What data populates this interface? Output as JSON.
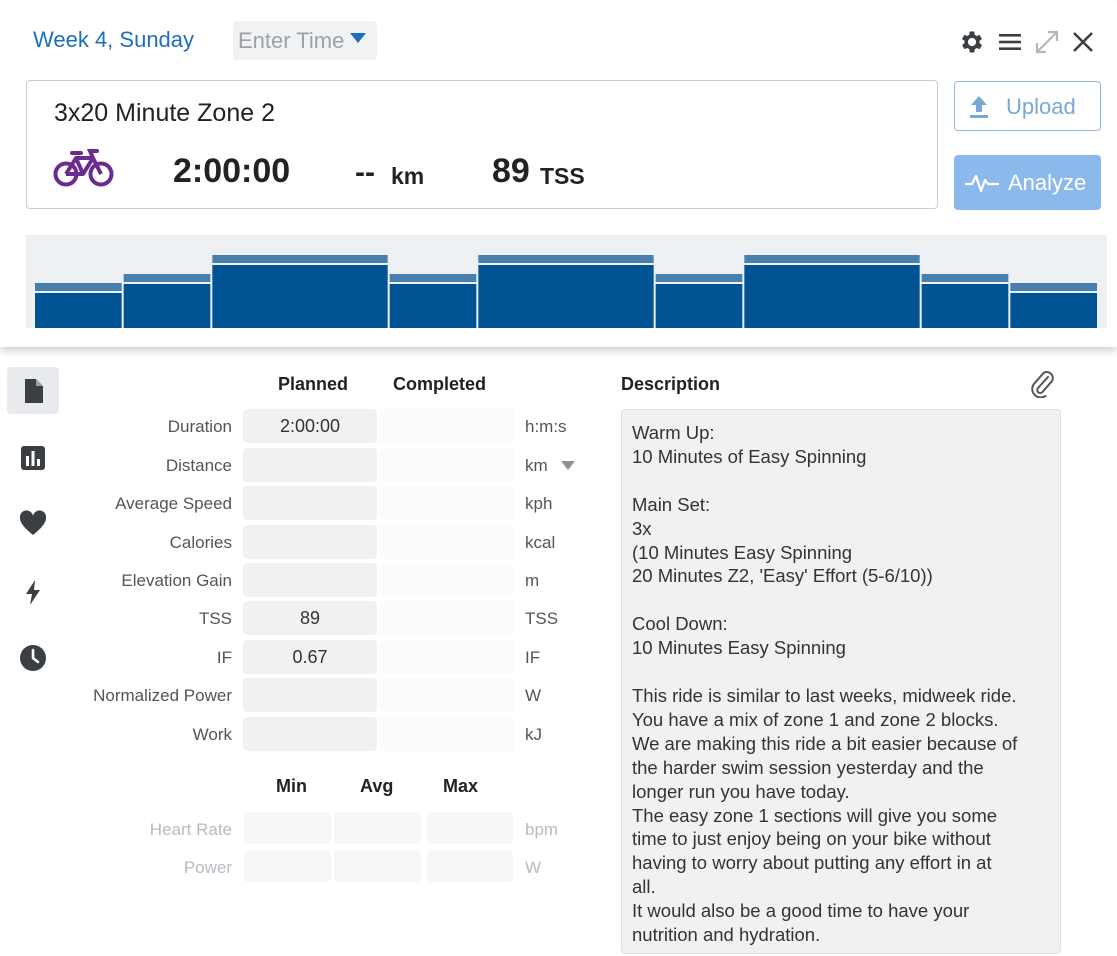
{
  "header": {
    "week_title": "Week 4, Sunday",
    "time_placeholder": "Enter Time",
    "icons": [
      "gear-icon",
      "menu-icon",
      "expand-icon",
      "close-icon"
    ]
  },
  "summary": {
    "title": "3x20 Minute Zone 2",
    "sport_icon": "bike-icon",
    "duration": "2:00:00",
    "distance": "--",
    "distance_unit": "km",
    "tss": "89",
    "tss_unit": "TSS"
  },
  "actions": {
    "upload_label": "Upload",
    "analyze_label": "Analyze"
  },
  "workout_structure": {
    "intervals": [
      {
        "duration_min": 10,
        "level": 1
      },
      {
        "duration_min": 10,
        "level": 2
      },
      {
        "duration_min": 20,
        "level": 3
      },
      {
        "duration_min": 10,
        "level": 2
      },
      {
        "duration_min": 20,
        "level": 3
      },
      {
        "duration_min": 10,
        "level": 2
      },
      {
        "duration_min": 20,
        "level": 3
      },
      {
        "duration_min": 10,
        "level": 2
      },
      {
        "duration_min": 10,
        "level": 1
      }
    ],
    "colors": {
      "bar": "#005494",
      "cap": "#4a7fad",
      "background": "#eef1f4"
    }
  },
  "sidebar": {
    "items": [
      {
        "name": "details-icon",
        "active": true
      },
      {
        "name": "chart-icon",
        "active": false
      },
      {
        "name": "heart-icon",
        "active": false
      },
      {
        "name": "lightning-icon",
        "active": false
      },
      {
        "name": "clock-icon",
        "active": false
      }
    ]
  },
  "metrics": {
    "planned_header": "Planned",
    "completed_header": "Completed",
    "rows": [
      {
        "label": "Duration",
        "planned": "2:00:00",
        "completed": "",
        "unit": "h:m:s"
      },
      {
        "label": "Distance",
        "planned": "",
        "completed": "",
        "unit": "km"
      },
      {
        "label": "Average Speed",
        "planned": "",
        "completed": "",
        "unit": "kph"
      },
      {
        "label": "Calories",
        "planned": "",
        "completed": "",
        "unit": "kcal"
      },
      {
        "label": "Elevation Gain",
        "planned": "",
        "completed": "",
        "unit": "m"
      },
      {
        "label": "TSS",
        "planned": "89",
        "completed": "",
        "unit": "TSS"
      },
      {
        "label": "IF",
        "planned": "0.67",
        "completed": "",
        "unit": "IF"
      },
      {
        "label": "Normalized Power",
        "planned": "",
        "completed": "",
        "unit": "W"
      },
      {
        "label": "Work",
        "planned": "",
        "completed": "",
        "unit": "kJ"
      }
    ]
  },
  "range_metrics": {
    "min_header": "Min",
    "avg_header": "Avg",
    "max_header": "Max",
    "rows": [
      {
        "label": "Heart Rate",
        "unit": "bpm"
      },
      {
        "label": "Power",
        "unit": "W"
      }
    ]
  },
  "description": {
    "header": "Description",
    "text": "Warm Up:\n10 Minutes of Easy Spinning\n\nMain Set:\n3x\n(10 Minutes Easy Spinning\n20 Minutes Z2, 'Easy' Effort (5-6/10))\n\nCool Down:\n10 Minutes Easy Spinning\n\nThis ride is similar to last weeks, midweek ride.\nYou have a mix of zone 1 and zone 2 blocks.\nWe are making this ride a bit easier because of\nthe harder swim session yesterday and the\nlonger run you have today.\nThe easy zone 1 sections will give you some\ntime to just enjoy being on your bike without\nhaving to worry about putting any effort in at\nall.\nIt would also be a good time to have your\nnutrition and hydration."
  },
  "colors": {
    "accent": "#1d6fbe",
    "sport": "#6a2c91",
    "analyze_button": "#8bb9ec"
  }
}
